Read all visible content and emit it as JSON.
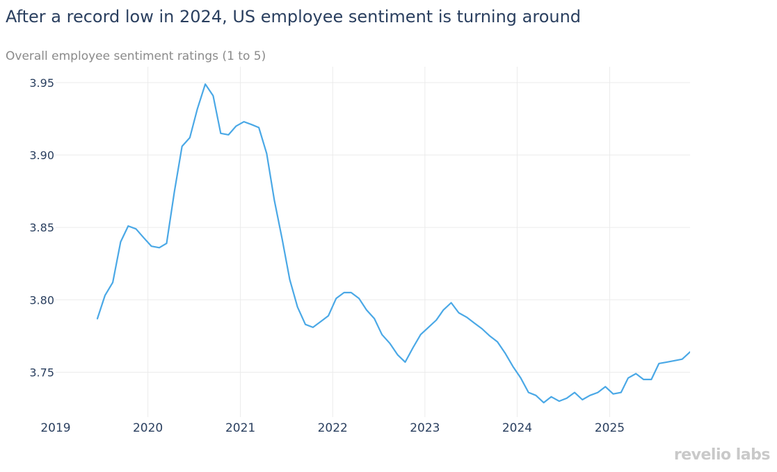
{
  "title": "After a record low in 2024, US employee sentiment is turning around",
  "subtitle": "Overall employee sentiment ratings (1 to 5)",
  "brand": "revelio labs",
  "colors": {
    "line": "#4aa8e6",
    "grid": "#ebebeb",
    "text": "#2a3f5f"
  },
  "chart_data": {
    "type": "line",
    "title": "After a record low in 2024, US employee sentiment is turning around",
    "subtitle": "Overall employee sentiment ratings (1 to 5)",
    "xlabel": "",
    "ylabel": "",
    "xlim": [
      "2019-01-01",
      "2025-11-15"
    ],
    "ylim": [
      3.719,
      3.961
    ],
    "x_ticks": [
      "2019",
      "2020",
      "2021",
      "2022",
      "2023",
      "2024",
      "2025"
    ],
    "y_ticks": [
      "3.75",
      "3.80",
      "3.85",
      "3.90",
      "3.95"
    ],
    "grid": true,
    "legend": "none",
    "series": [
      {
        "x": [
          "2019-06",
          "2019-07",
          "2019-08",
          "2019-09",
          "2019-10",
          "2019-11",
          "2019-12",
          "2020-01",
          "2020-02",
          "2020-03",
          "2020-04",
          "2020-05",
          "2020-06",
          "2020-07",
          "2020-08",
          "2020-09",
          "2020-10",
          "2020-11",
          "2020-12",
          "2021-01",
          "2021-02",
          "2021-03",
          "2021-04",
          "2021-05",
          "2021-06",
          "2021-07",
          "2021-08",
          "2021-09",
          "2021-10",
          "2021-11",
          "2021-12",
          "2022-01",
          "2022-02",
          "2022-03",
          "2022-04",
          "2022-05",
          "2022-06",
          "2022-07",
          "2022-08",
          "2022-09",
          "2022-10",
          "2022-11",
          "2022-12",
          "2023-01",
          "2023-02",
          "2023-03",
          "2023-04",
          "2023-05",
          "2023-06",
          "2023-07",
          "2023-08",
          "2023-09",
          "2023-10",
          "2023-11",
          "2023-12",
          "2024-01",
          "2024-02",
          "2024-03",
          "2024-04",
          "2024-05",
          "2024-06",
          "2024-07",
          "2024-08",
          "2024-09",
          "2024-10",
          "2024-11",
          "2024-12",
          "2025-01",
          "2025-02",
          "2025-03",
          "2025-04",
          "2025-05",
          "2025-06",
          "2025-07",
          "2025-08",
          "2025-09",
          "2025-10",
          "2025-11"
        ],
        "values": [
          3.787,
          3.803,
          3.812,
          3.84,
          3.851,
          3.849,
          3.843,
          3.837,
          3.836,
          3.839,
          3.875,
          3.906,
          3.912,
          3.932,
          3.949,
          3.941,
          3.915,
          3.914,
          3.92,
          3.923,
          3.921,
          3.919,
          3.901,
          3.869,
          3.842,
          3.814,
          3.795,
          3.783,
          3.781,
          3.785,
          3.789,
          3.801,
          3.805,
          3.805,
          3.801,
          3.793,
          3.787,
          3.776,
          3.77,
          3.762,
          3.757,
          3.767,
          3.776,
          3.781,
          3.786,
          3.793,
          3.798,
          3.791,
          3.788,
          3.784,
          3.78,
          3.775,
          3.771,
          3.763,
          3.754,
          3.746,
          3.736,
          3.734,
          3.729,
          3.733,
          3.73,
          3.732,
          3.736,
          3.731,
          3.734,
          3.736,
          3.74,
          3.735,
          3.736,
          3.746,
          3.749,
          3.745,
          3.745,
          3.756,
          3.757,
          3.758,
          3.759,
          3.764
        ]
      }
    ]
  }
}
